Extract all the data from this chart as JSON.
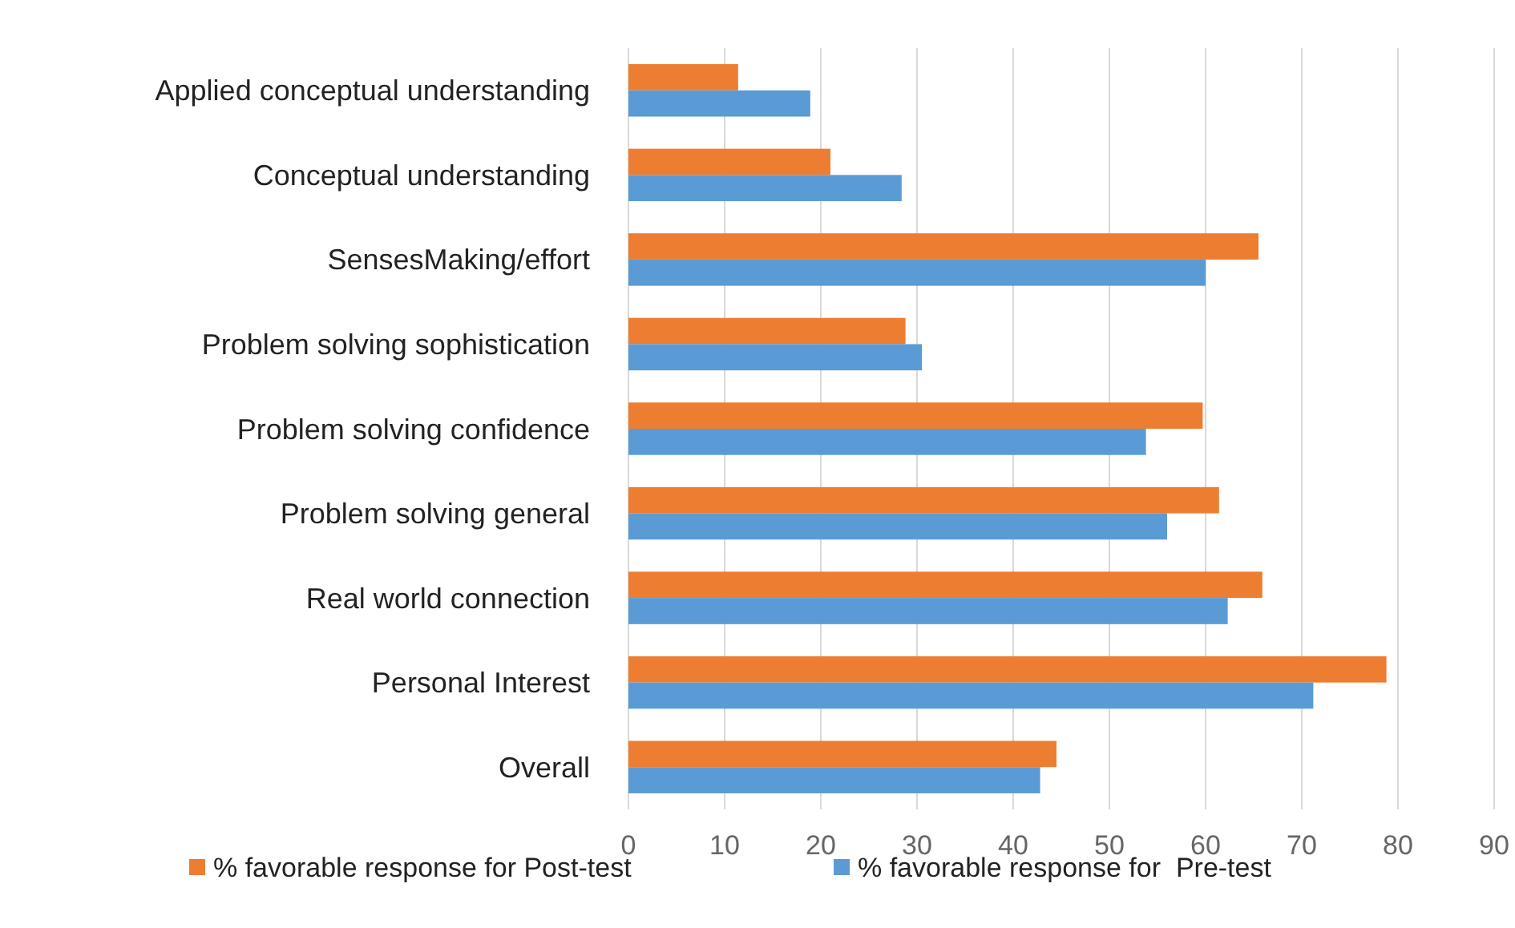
{
  "chart_data": {
    "type": "bar",
    "orientation": "horizontal",
    "categories": [
      "Applied conceptual understanding",
      "Conceptual understanding",
      "SensesMaking/effort",
      "Problem solving sophistication",
      "Problem solving confidence",
      "Problem solving general",
      "Real world connection",
      "Personal Interest",
      "Overall"
    ],
    "series": [
      {
        "name": "% favorable response for Post-test",
        "color": "#ed7d31",
        "values": [
          11.4,
          21,
          65.5,
          28.8,
          59.7,
          61.4,
          65.9,
          78.8,
          44.5
        ]
      },
      {
        "name": "% favorable response for  Pre-test",
        "color": "#5b9bd5",
        "values": [
          18.9,
          28.4,
          60,
          30.5,
          53.8,
          56,
          62.3,
          71.2,
          42.8
        ]
      }
    ],
    "xlim": [
      0,
      90
    ],
    "xticks": [
      0,
      10,
      20,
      30,
      40,
      50,
      60,
      70,
      80,
      90
    ],
    "grid": "x",
    "legend": "bottom"
  }
}
